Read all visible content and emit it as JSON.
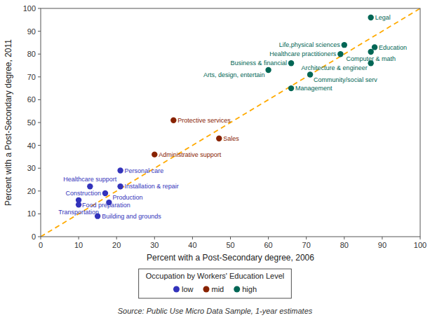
{
  "chart_data": {
    "type": "scatter",
    "x_label": "Percent with a Post-Secondary degree, 2006",
    "y_label": "Percent with a Post-Secondary degree, 2011",
    "source": "Source: Public Use Micro Data Sample, 1-year estimates",
    "legend_title": "Occupation by Workers' Education Level",
    "legend": "bottom",
    "grid": false,
    "xlim": [
      0,
      100
    ],
    "ylim": [
      0,
      100
    ],
    "xticks": [
      0,
      10,
      20,
      30,
      40,
      50,
      60,
      70,
      80,
      90,
      100
    ],
    "yticks": [
      0,
      10,
      20,
      30,
      40,
      50,
      60,
      70,
      80,
      90,
      100
    ],
    "reference_line": {
      "x": [
        0,
        100
      ],
      "values": [
        0,
        100
      ],
      "color": "#ffaa00",
      "line_style": "dashed"
    },
    "series": [
      {
        "name": "low",
        "color": "#3333bb",
        "labels": [
          "Personal care",
          "Healthcare support",
          "Installation & repair",
          "Construction",
          "Food preparation",
          "Transportation",
          "Production",
          "Building and grounds"
        ],
        "x": [
          21,
          13,
          21,
          17,
          10,
          10,
          18,
          15
        ],
        "values": [
          29,
          22,
          22,
          19,
          16,
          14,
          15,
          9
        ]
      },
      {
        "name": "mid",
        "color": "#882200",
        "labels": [
          "Protective services",
          "Sales",
          "Administrative support"
        ],
        "x": [
          35,
          47,
          30
        ],
        "values": [
          51,
          43,
          36
        ]
      },
      {
        "name": "high",
        "color": "#006655",
        "labels": [
          "Legal",
          "Education",
          "Life,physical sciences",
          "Computer & math",
          "Healthcare practitioners",
          "Business & financial",
          "Architecture & engineer",
          "Arts, design, entertain",
          "Community/social serv",
          "Management"
        ],
        "x": [
          87,
          88,
          80,
          87,
          79,
          66,
          87,
          60,
          71,
          66
        ],
        "values": [
          96,
          83,
          84,
          81,
          80,
          76,
          76,
          73,
          71,
          65
        ]
      }
    ]
  }
}
